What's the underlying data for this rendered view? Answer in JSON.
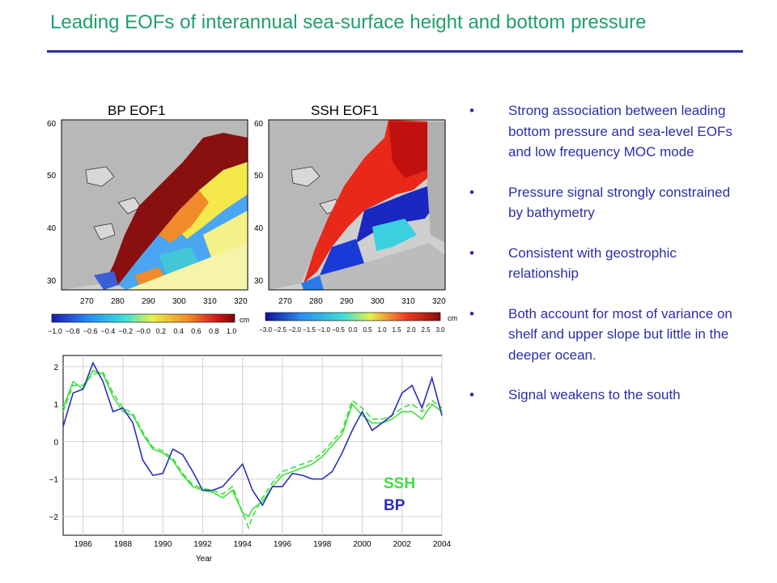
{
  "slide": {
    "title": "Leading EOFs of interannual sea-surface height and bottom pressure",
    "title_color": "#1fa06a",
    "rule_color": "#2a2f9e"
  },
  "maps": [
    {
      "label": "BP EOF1",
      "y_ticks": [
        "60",
        "50",
        "40",
        "30"
      ],
      "x_ticks": [
        "270",
        "280",
        "290",
        "300",
        "310",
        "320"
      ],
      "colorbar_unit": "cm",
      "colorbar_ticks": [
        "−1.0",
        "−0.8",
        "−0.6",
        "−0.4",
        "−0.2",
        "−0.0",
        "0.2",
        "0.4",
        "0.6",
        "0.8",
        "1.0"
      ]
    },
    {
      "label": "SSH EOF1",
      "y_ticks": [
        "60",
        "50",
        "40",
        "30"
      ],
      "x_ticks": [
        "270",
        "280",
        "290",
        "300",
        "310",
        "320"
      ],
      "colorbar_unit": "cm",
      "colorbar_ticks": [
        "−3.0",
        "−2.5",
        "−2.0",
        "−1.5",
        "−1.0",
        "−0.5",
        "0.0",
        "0.5",
        "1.0",
        "1.5",
        "2.0",
        "2.5",
        "3.0"
      ]
    }
  ],
  "bullets": {
    "marker": "•",
    "color": "#2b2fa6",
    "items": [
      "Strong association between leading bottom pressure and sea-level EOFs and low frequency MOC mode",
      "Pressure signal strongly constrained by bathymetry",
      "Consistent with geostrophic relationship",
      "Both account for most of variance on shelf and upper slope but little in the deeper ocean.",
      "Signal weakens to the south"
    ]
  },
  "chart_data": {
    "type": "line",
    "xlabel": "Year",
    "ylabel": "",
    "xlim": [
      1985,
      2004
    ],
    "ylim": [
      -2.5,
      2.3
    ],
    "x_ticks": [
      1986,
      1988,
      1990,
      1992,
      1994,
      1996,
      1998,
      2000,
      2002,
      2004
    ],
    "y_ticks": [
      2,
      1,
      0,
      -1,
      -2
    ],
    "y_tick_labels": [
      "2",
      "1",
      "0",
      "−1",
      "−2"
    ],
    "grid": true,
    "legend": [
      {
        "label": "SSH",
        "color": "#3ee03e"
      },
      {
        "label": "BP",
        "color": "#2a2fb8"
      }
    ],
    "series": [
      {
        "name": "SSH",
        "color": "#3ee03e",
        "style": "solid",
        "x": [
          1985,
          1985.5,
          1986,
          1986.5,
          1987,
          1987.5,
          1988,
          1988.5,
          1989,
          1989.5,
          1990,
          1990.5,
          1991,
          1991.5,
          1992,
          1992.5,
          1993,
          1993.5,
          1994,
          1994.3,
          1994.5,
          1995,
          1995.5,
          1996,
          1996.5,
          1997,
          1997.5,
          1998,
          1998.5,
          1999,
          1999.5,
          2000,
          2000.5,
          2001,
          2001.5,
          2002,
          2002.5,
          2003,
          2003.5,
          2004
        ],
        "y": [
          0.9,
          1.6,
          1.4,
          1.9,
          1.8,
          1.2,
          0.8,
          0.7,
          0.2,
          -0.2,
          -0.3,
          -0.5,
          -0.9,
          -1.2,
          -1.3,
          -1.35,
          -1.5,
          -1.3,
          -1.9,
          -2.0,
          -1.8,
          -1.6,
          -1.2,
          -0.9,
          -0.8,
          -0.7,
          -0.6,
          -0.4,
          -0.1,
          0.2,
          1.0,
          0.7,
          0.5,
          0.5,
          0.6,
          0.8,
          0.8,
          0.6,
          1.0,
          0.8
        ]
      },
      {
        "name": "SSH dashed",
        "color": "#3ee03e",
        "style": "dashed",
        "x": [
          1985,
          1985.5,
          1986,
          1986.5,
          1987,
          1987.5,
          1988,
          1988.5,
          1989,
          1989.5,
          1990,
          1990.5,
          1991,
          1991.5,
          1992,
          1992.5,
          1993,
          1993.5,
          1994,
          1994.3,
          1994.5,
          1995,
          1995.5,
          1996,
          1996.5,
          1997,
          1997.5,
          1998,
          1998.5,
          1999,
          1999.5,
          2000,
          2000.5,
          2001,
          2001.5,
          2002,
          2002.5,
          2003,
          2003.5,
          2004
        ],
        "y": [
          0.8,
          1.5,
          1.5,
          1.8,
          1.85,
          1.3,
          0.9,
          0.75,
          0.25,
          -0.15,
          -0.25,
          -0.45,
          -0.85,
          -1.15,
          -1.25,
          -1.3,
          -1.4,
          -1.2,
          -1.9,
          -2.3,
          -2.0,
          -1.5,
          -1.1,
          -0.8,
          -0.7,
          -0.6,
          -0.5,
          -0.3,
          0.0,
          0.3,
          1.1,
          0.9,
          0.6,
          0.6,
          0.7,
          0.9,
          1.0,
          0.8,
          1.1,
          0.9
        ]
      },
      {
        "name": "BP",
        "color": "#2a2fb8",
        "style": "solid",
        "x": [
          1985,
          1985.5,
          1986,
          1986.5,
          1987,
          1987.5,
          1988,
          1988.5,
          1989,
          1989.5,
          1990,
          1990.5,
          1991,
          1991.5,
          1992,
          1992.5,
          1993,
          1993.5,
          1994,
          1994.5,
          1995,
          1995.5,
          1996,
          1996.5,
          1997,
          1997.5,
          1998,
          1998.5,
          1999,
          1999.5,
          2000,
          2000.5,
          2001,
          2001.5,
          2002,
          2002.5,
          2003,
          2003.5,
          2004
        ],
        "y": [
          0.4,
          1.3,
          1.4,
          2.1,
          1.6,
          0.8,
          0.9,
          0.5,
          -0.5,
          -0.9,
          -0.85,
          -0.2,
          -0.35,
          -0.8,
          -1.3,
          -1.3,
          -1.2,
          -0.9,
          -0.6,
          -1.3,
          -1.7,
          -1.2,
          -1.2,
          -0.85,
          -0.9,
          -1.0,
          -1.0,
          -0.8,
          -0.3,
          0.3,
          0.8,
          0.3,
          0.5,
          0.7,
          1.3,
          1.5,
          0.9,
          1.7,
          0.7
        ]
      }
    ]
  }
}
